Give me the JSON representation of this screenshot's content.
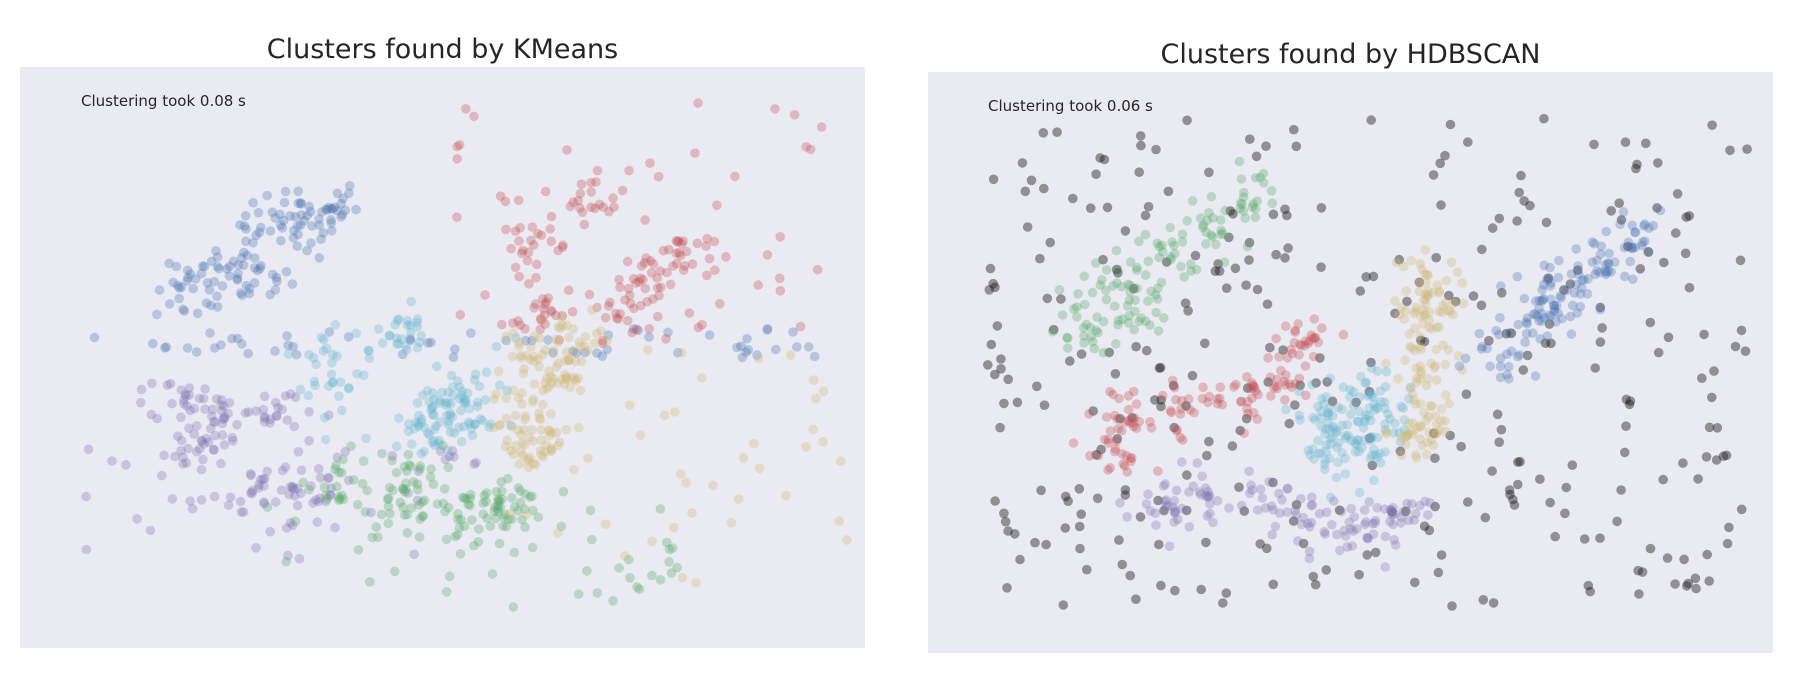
{
  "chart_data": [
    {
      "type": "scatter",
      "title": "Clusters found by KMeans",
      "annotation": "Clustering took 0.08 s",
      "xlabel": "",
      "ylabel": "",
      "xlim": [
        0,
        100
      ],
      "ylim": [
        0,
        100
      ],
      "grid": false,
      "clusters": [
        {
          "label": "blue",
          "color": "#4c72b0",
          "dense": [
            [
              24,
              65
            ],
            [
              30,
              73
            ],
            [
              34,
              72
            ],
            [
              28,
              64
            ],
            [
              20,
              61
            ],
            [
              36,
              76
            ]
          ],
          "sparse_box": [
            8,
            95,
            50,
            55
          ],
          "sparse_n": 60
        },
        {
          "label": "red",
          "color": "#c44e52",
          "dense": [
            [
              62,
              58
            ],
            [
              71,
              58
            ],
            [
              78,
              68
            ],
            [
              68,
              78
            ],
            [
              75,
              63
            ],
            [
              61,
              69
            ]
          ],
          "sparse_box": [
            50,
            98,
            95,
            55
          ],
          "sparse_n": 45
        },
        {
          "label": "purple",
          "color": "#8172b2",
          "dense": [
            [
              18,
              43
            ],
            [
              24,
              40
            ],
            [
              30,
              41
            ],
            [
              20,
              34
            ],
            [
              28,
              27
            ],
            [
              34,
              27
            ]
          ],
          "sparse_box": [
            7,
            55,
            37,
            15
          ],
          "sparse_n": 45
        },
        {
          "label": "green",
          "color": "#55a868",
          "dense": [
            [
              38,
              29
            ],
            [
              45,
              24
            ],
            [
              52,
              22
            ],
            [
              58,
              25
            ],
            [
              46,
              30
            ],
            [
              56,
              23
            ]
          ],
          "sparse_box": [
            28,
            78,
            27,
            7
          ],
          "sparse_n": 40
        },
        {
          "label": "cyan",
          "color": "#64b5cd",
          "dense": [
            [
              48,
              37
            ],
            [
              50,
              42
            ],
            [
              53,
              38
            ],
            [
              52,
              45
            ],
            [
              37,
              48
            ],
            [
              45,
              54
            ]
          ],
          "sparse_box": [
            35,
            60,
            57,
            33
          ],
          "sparse_n": 20
        },
        {
          "label": "yellow",
          "color": "#ccb974",
          "dense": [
            [
              60,
              50
            ],
            [
              60,
              43
            ],
            [
              60,
              37
            ],
            [
              64,
              47
            ],
            [
              66,
              53
            ],
            [
              61,
              33
            ]
          ],
          "sparse_box": [
            57,
            98,
            52,
            10
          ],
          "sparse_n": 45
        }
      ]
    },
    {
      "type": "scatter",
      "title": "Clusters found by HDBSCAN",
      "annotation": "Clustering took 0.06 s",
      "xlabel": "",
      "ylabel": "",
      "xlim": [
        0,
        100
      ],
      "ylim": [
        0,
        100
      ],
      "grid": false,
      "clusters": [
        {
          "label": "noise",
          "color": "#222222",
          "dense": [],
          "sparse_box": [
            7,
            97,
            92,
            8
          ],
          "sparse_n": 330
        },
        {
          "label": "green",
          "color": "#55a868",
          "dense": [
            [
              22,
              63
            ],
            [
              28,
              68
            ],
            [
              33,
              73
            ],
            [
              38,
              78
            ],
            [
              25,
              58
            ],
            [
              18,
              56
            ]
          ],
          "sparse_box": [
            0,
            0,
            0,
            0
          ],
          "sparse_n": 0
        },
        {
          "label": "red",
          "color": "#c44e52",
          "dense": [
            [
              22,
              34
            ],
            [
              24,
              41
            ],
            [
              30,
              43
            ],
            [
              37,
              44
            ],
            [
              42,
              47
            ],
            [
              44,
              54
            ]
          ],
          "sparse_box": [
            0,
            0,
            0,
            0
          ],
          "sparse_n": 0
        },
        {
          "label": "cyan",
          "color": "#64b5cd",
          "dense": [
            [
              48,
              37
            ],
            [
              51,
              42
            ],
            [
              53,
              37
            ],
            [
              50,
              34
            ],
            [
              54,
              44
            ],
            [
              47,
              41
            ]
          ],
          "sparse_box": [
            0,
            0,
            0,
            0
          ],
          "sparse_n": 0
        },
        {
          "label": "purple",
          "color": "#8172b2",
          "dense": [
            [
              27,
              24
            ],
            [
              33,
              26
            ],
            [
              40,
              25
            ],
            [
              46,
              22
            ],
            [
              52,
              21
            ],
            [
              56,
              24
            ]
          ],
          "sparse_box": [
            0,
            0,
            0,
            0
          ],
          "sparse_n": 0
        },
        {
          "label": "yellow",
          "color": "#ccb974",
          "dense": [
            [
              59,
              64
            ],
            [
              59,
              56
            ],
            [
              59,
              48
            ],
            [
              59,
              42
            ],
            [
              58,
              36
            ],
            [
              60,
              60
            ]
          ],
          "sparse_box": [
            0,
            0,
            0,
            0
          ],
          "sparse_n": 0
        },
        {
          "label": "blue",
          "color": "#4c72b0",
          "dense": [
            [
              68,
              52
            ],
            [
              72,
              58
            ],
            [
              76,
              63
            ],
            [
              80,
              67
            ],
            [
              84,
              72
            ],
            [
              74,
              61
            ]
          ],
          "sparse_box": [
            0,
            0,
            0,
            0
          ],
          "sparse_n": 0
        }
      ]
    }
  ]
}
